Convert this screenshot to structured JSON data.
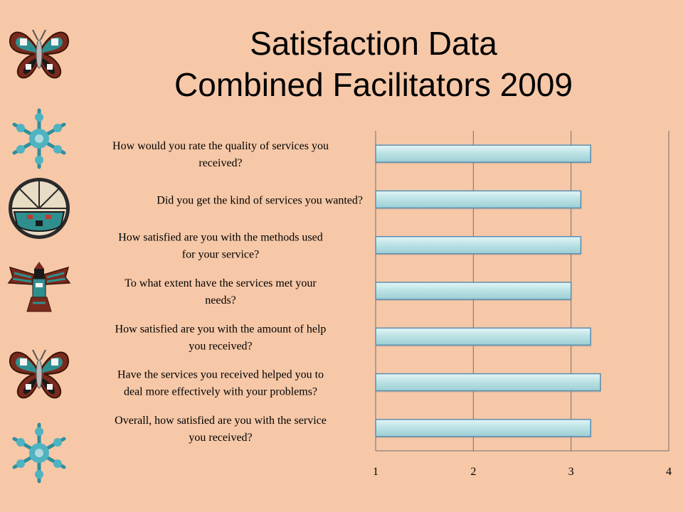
{
  "slide": {
    "title_line1": "Satisfaction Data",
    "title_line2": "Combined Facilitators 2009"
  },
  "ornaments": [
    {
      "icon": "butterfly-icon"
    },
    {
      "icon": "snowflake-icon"
    },
    {
      "icon": "sun-face-icon"
    },
    {
      "icon": "thunderbird-icon"
    },
    {
      "icon": "butterfly-icon"
    },
    {
      "icon": "snowflake-icon"
    }
  ],
  "chart_data": {
    "type": "bar",
    "orientation": "horizontal",
    "categories": [
      [
        "How would you rate the quality of services you",
        "received?"
      ],
      [
        "Did you get the kind of services you wanted?"
      ],
      [
        "How satisfied are you with the methods used",
        "for your service?"
      ],
      [
        "To what extent have the services met your",
        "needs?"
      ],
      [
        "How satisfied are you with the amount of help",
        "you received?"
      ],
      [
        "Have the services you received helped you to",
        "deal more effectively with your problems?"
      ],
      [
        "Overall, how satisfied are you with the service",
        "you received?"
      ]
    ],
    "values": [
      3.2,
      3.1,
      3.1,
      3.0,
      3.2,
      3.3,
      3.2
    ],
    "xlim": [
      1,
      4
    ],
    "xticks": [
      1,
      2,
      3,
      4
    ],
    "grid": true,
    "legend": "none",
    "bar_color": "#bde3e6",
    "bar_edge_color": "#5b8fb0"
  }
}
